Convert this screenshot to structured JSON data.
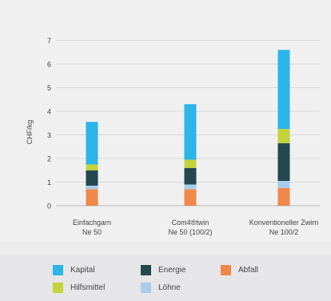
{
  "chart_data": {
    "type": "bar",
    "stacked": true,
    "ylabel": "CHF/kg",
    "ylim": [
      0,
      7
    ],
    "yticks": [
      0,
      1,
      2,
      3,
      4,
      5,
      6,
      7
    ],
    "grid": true,
    "legend_position": "bottom",
    "categories": [
      {
        "line1": "Einfachgarn",
        "line2": "Ne 50"
      },
      {
        "line1": "Com4®twin",
        "line2": "Ne 50 (100/2)"
      },
      {
        "line1": "Konventioneller Zwirn",
        "line2": "Ne 100/2"
      }
    ],
    "series": [
      {
        "name": "Abfall",
        "color": "#f0884a",
        "values": [
          0.7,
          0.7,
          0.75
        ]
      },
      {
        "name": "Löhne",
        "color": "#a9cdec",
        "values": [
          0.15,
          0.2,
          0.3
        ]
      },
      {
        "name": "Energie",
        "color": "#23484f",
        "values": [
          0.65,
          0.7,
          1.6
        ]
      },
      {
        "name": "Hilfsmittel",
        "color": "#c4d33a",
        "values": [
          0.25,
          0.35,
          0.6
        ]
      },
      {
        "name": "Kapital",
        "color": "#2bb5e8",
        "values": [
          1.8,
          2.35,
          3.35
        ]
      }
    ]
  },
  "legend": [
    {
      "label": "Kapital",
      "color": "#2bb5e8"
    },
    {
      "label": "Energie",
      "color": "#23484f"
    },
    {
      "label": "Abfall",
      "color": "#f0884a"
    },
    {
      "label": "Hilfsmittel",
      "color": "#c4d33a"
    },
    {
      "label": "Löhne",
      "color": "#a9cdec"
    }
  ]
}
